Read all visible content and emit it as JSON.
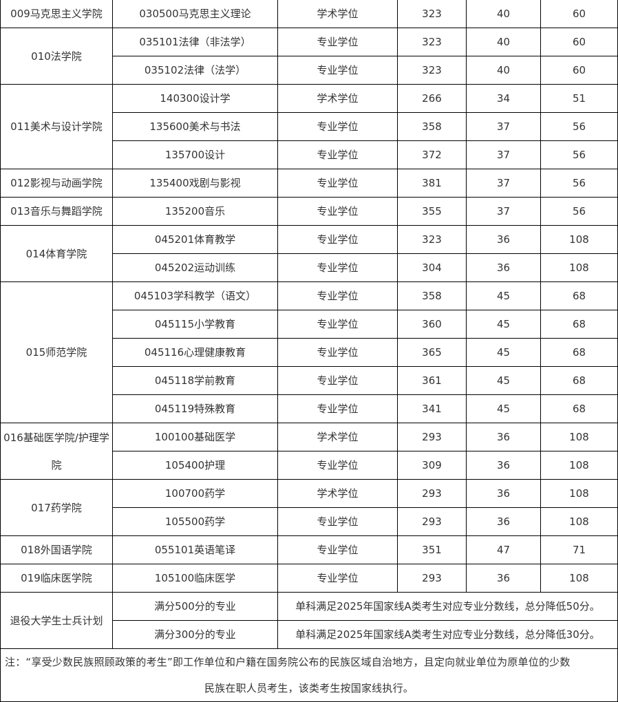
{
  "colleges": [
    {
      "name": "009马克思主义学院",
      "programs": [
        [
          "030500马克思主义理论",
          "学术学位",
          "323",
          "40",
          "60"
        ]
      ]
    },
    {
      "name": "010法学院",
      "programs": [
        [
          "035101法律（非法学）",
          "专业学位",
          "323",
          "40",
          "60"
        ],
        [
          "035102法律（法学）",
          "专业学位",
          "323",
          "40",
          "60"
        ]
      ]
    },
    {
      "name": "011美术与设计学院",
      "programs": [
        [
          "140300设计学",
          "学术学位",
          "266",
          "34",
          "51"
        ],
        [
          "135600美术与书法",
          "专业学位",
          "358",
          "37",
          "56"
        ],
        [
          "135700设计",
          "专业学位",
          "372",
          "37",
          "56"
        ]
      ]
    },
    {
      "name": "012影视与动画学院",
      "programs": [
        [
          "135400戏剧与影视",
          "专业学位",
          "381",
          "37",
          "56"
        ]
      ]
    },
    {
      "name": "013音乐与舞蹈学院",
      "programs": [
        [
          "135200音乐",
          "专业学位",
          "355",
          "37",
          "56"
        ]
      ]
    },
    {
      "name": "014体育学院",
      "programs": [
        [
          "045201体育教学",
          "专业学位",
          "323",
          "36",
          "108"
        ],
        [
          "045202运动训练",
          "专业学位",
          "304",
          "36",
          "108"
        ]
      ]
    },
    {
      "name": "015师范学院",
      "programs": [
        [
          "045103学科教学（语文）",
          "专业学位",
          "358",
          "45",
          "68"
        ],
        [
          "045115小学教育",
          "专业学位",
          "360",
          "45",
          "68"
        ],
        [
          "045116心理健康教育",
          "专业学位",
          "365",
          "45",
          "68"
        ],
        [
          "045118学前教育",
          "专业学位",
          "361",
          "45",
          "68"
        ],
        [
          "045119特殊教育",
          "专业学位",
          "341",
          "45",
          "68"
        ]
      ]
    },
    {
      "name": "016基础医学院/护理学院",
      "programs": [
        [
          "100100基础医学",
          "学术学位",
          "293",
          "36",
          "108"
        ],
        [
          "105400护理",
          "专业学位",
          "309",
          "36",
          "108"
        ]
      ]
    },
    {
      "name": "017药学院",
      "programs": [
        [
          "100700药学",
          "学术学位",
          "293",
          "36",
          "108"
        ],
        [
          "105500药学",
          "专业学位",
          "293",
          "36",
          "108"
        ]
      ]
    },
    {
      "name": "018外国语学院",
      "programs": [
        [
          "055101英语笔译",
          "专业学位",
          "351",
          "47",
          "71"
        ]
      ]
    },
    {
      "name": "019临床医学院",
      "programs": [
        [
          "105100临床医学",
          "专业学位",
          "293",
          "36",
          "108"
        ]
      ]
    }
  ],
  "veterans": {
    "name": "退役大学生士兵计划",
    "rows": [
      [
        "满分500分的专业",
        "单科满足2025年国家线A类考生对应专业分数线，总分降低50分。"
      ],
      [
        "满分300分的专业",
        "单科满足2025年国家线A类考生对应专业分数线，总分降低30分。"
      ]
    ]
  },
  "note": {
    "line1": "注：“享受少数民族照顾政策的考生”即工作单位和户籍在国务院公布的民族区域自治地方，且定向就业单位为原单位的少数",
    "line2": "民族在职人员考生，该类考生按国家线执行。"
  }
}
